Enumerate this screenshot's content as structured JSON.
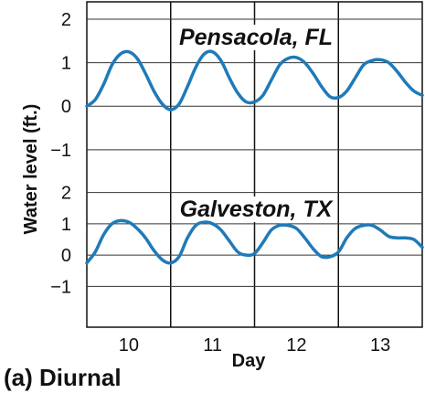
{
  "caption": "(a) Diurnal",
  "chart_data": {
    "type": "line",
    "xlabel": "Day",
    "ylabel": "Water level (ft.)",
    "x_ticks": [
      10,
      11,
      12,
      13
    ],
    "xlim": [
      9.5,
      13.5
    ],
    "x_day_boundaries": [
      10.5,
      11.5,
      12.5
    ],
    "grid": "horizontal lines at each labeled y tick; vertical lines at day boundaries",
    "line_color": "#1f7ab8",
    "panels": [
      {
        "title": "Pensacola, FL",
        "y_ticks": [
          2,
          1,
          0,
          -1
        ],
        "y_tick_labels": [
          "2",
          "1",
          "0",
          "−1"
        ],
        "ylim": [
          -1.55,
          2.4
        ],
        "x": [
          9.5,
          9.6,
          9.7,
          9.8,
          9.9,
          10.0,
          10.1,
          10.2,
          10.3,
          10.4,
          10.5,
          10.6,
          10.7,
          10.8,
          10.9,
          11.0,
          11.1,
          11.2,
          11.3,
          11.4,
          11.5,
          11.6,
          11.7,
          11.8,
          11.9,
          12.0,
          12.1,
          12.2,
          12.3,
          12.4,
          12.5,
          12.6,
          12.7,
          12.8,
          12.9,
          13.0,
          13.1,
          13.2,
          13.3,
          13.4,
          13.5
        ],
        "y": [
          0.0,
          0.15,
          0.5,
          0.95,
          1.2,
          1.25,
          1.1,
          0.75,
          0.35,
          0.05,
          -0.08,
          0.05,
          0.45,
          0.9,
          1.2,
          1.25,
          1.05,
          0.65,
          0.3,
          0.1,
          0.1,
          0.25,
          0.6,
          0.95,
          1.1,
          1.12,
          1.0,
          0.75,
          0.45,
          0.22,
          0.2,
          0.35,
          0.65,
          0.95,
          1.05,
          1.07,
          1.0,
          0.8,
          0.55,
          0.35,
          0.25
        ]
      },
      {
        "title": "Galveston, TX",
        "y_ticks": [
          2,
          1,
          0,
          -1
        ],
        "y_tick_labels": [
          "2",
          "1",
          "0",
          "−1"
        ],
        "ylim": [
          -2.3,
          2.6
        ],
        "x": [
          9.5,
          9.6,
          9.7,
          9.8,
          9.9,
          10.0,
          10.1,
          10.2,
          10.3,
          10.4,
          10.5,
          10.6,
          10.7,
          10.8,
          10.9,
          11.0,
          11.1,
          11.2,
          11.3,
          11.4,
          11.5,
          11.6,
          11.7,
          11.8,
          11.9,
          12.0,
          12.1,
          12.2,
          12.3,
          12.4,
          12.5,
          12.6,
          12.7,
          12.8,
          12.9,
          13.0,
          13.1,
          13.2,
          13.3,
          13.4,
          13.5
        ],
        "y": [
          -0.25,
          0.1,
          0.65,
          1.0,
          1.1,
          1.05,
          0.85,
          0.55,
          0.15,
          -0.15,
          -0.25,
          -0.05,
          0.55,
          0.95,
          1.05,
          1.0,
          0.8,
          0.45,
          0.1,
          0.0,
          0.05,
          0.4,
          0.8,
          0.95,
          0.95,
          0.85,
          0.55,
          0.2,
          -0.05,
          -0.05,
          0.1,
          0.55,
          0.85,
          0.95,
          0.95,
          0.8,
          0.6,
          0.55,
          0.55,
          0.5,
          0.25
        ]
      }
    ]
  }
}
